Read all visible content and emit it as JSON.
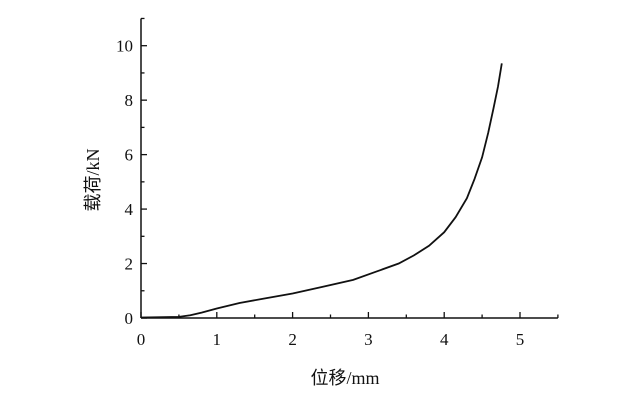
{
  "chart_data": {
    "type": "line",
    "title": "",
    "xlabel": "位移/mm",
    "ylabel": "载荷/kN",
    "xlim": [
      0,
      5.5
    ],
    "ylim": [
      0,
      11
    ],
    "xticks": [
      0,
      1,
      2,
      3,
      4,
      5
    ],
    "yticks": [
      0,
      2,
      4,
      6,
      8,
      10
    ],
    "x_minor_step": 0.5,
    "y_minor_step": 1,
    "grid": false,
    "line_color": "#111111",
    "series": [
      {
        "x": [
          0,
          0.3,
          0.5,
          0.65,
          0.8,
          1.0,
          1.3,
          1.6,
          2.0,
          2.4,
          2.8,
          3.1,
          3.4,
          3.6,
          3.8,
          4.0,
          4.15,
          4.3,
          4.4,
          4.5,
          4.58,
          4.65,
          4.71,
          4.76
        ],
        "y": [
          0.02,
          0.03,
          0.04,
          0.1,
          0.2,
          0.35,
          0.55,
          0.7,
          0.9,
          1.15,
          1.4,
          1.7,
          2.0,
          2.3,
          2.65,
          3.15,
          3.7,
          4.4,
          5.1,
          5.9,
          6.8,
          7.7,
          8.5,
          9.35
        ]
      }
    ]
  }
}
